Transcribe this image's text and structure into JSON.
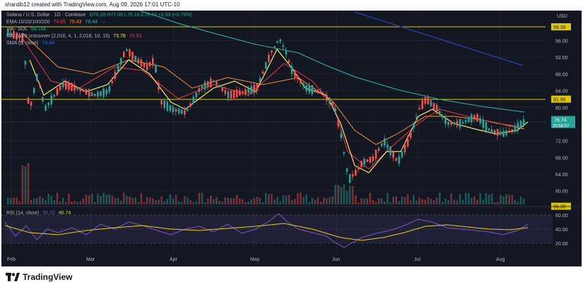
{
  "header": {
    "text": "shardib12 created with TradingView.com, Aug 09, 2026 17:01 UTC-10"
  },
  "legend": {
    "symbol": "Solana / U.S. Dollar · 1D · Coinbase",
    "ohlc": "O76.20 H77.09 L76.16 C76.74 +0.53 (+0.70%)",
    "ema_label": "EMA 10/20/100/200",
    "ema_values": [
      "74.85",
      "75.43",
      "78.44",
      "—"
    ],
    "vol_label": "Vol · SOL",
    "vol_value": "88.16K",
    "ma_label": "MA 10/20 crossover (2,016, 4, 1, 2,018, 10, 15)",
    "ma_values": [
      "73.78",
      "74.53"
    ],
    "sma_label": "SMA (5, close)",
    "sma_value": "74.44"
  },
  "price_axis": {
    "currency": "USD",
    "ticks": [
      "96.00",
      "92.00",
      "88.00",
      "84.00",
      "80.00",
      "72.00",
      "68.00",
      "64.00",
      "60.00"
    ],
    "levels": [
      "99.30",
      "81.96",
      "56.30"
    ],
    "current_price": "76.74",
    "countdown": "20:58:07"
  },
  "rsi": {
    "label": "RSI (14, close)",
    "value1": "56.70",
    "value2": "46.74",
    "ticks": [
      "60.00",
      "40.00",
      "20.00"
    ]
  },
  "time_axis": {
    "labels": [
      "Feb",
      "Mar",
      "Apr",
      "May",
      "Jun",
      "Jul",
      "Aug"
    ]
  },
  "footer": {
    "logo": "TV",
    "brand": "TradingView"
  },
  "colors": {
    "bg": "#131722",
    "up": "#26a69a",
    "down": "#ef5350",
    "level": "#e0c800",
    "sma": "#f5e66b",
    "ema10": "#f23645",
    "ema20": "#f7902e",
    "ema100": "#2bb7ad",
    "ema200": "#2962ff"
  }
}
